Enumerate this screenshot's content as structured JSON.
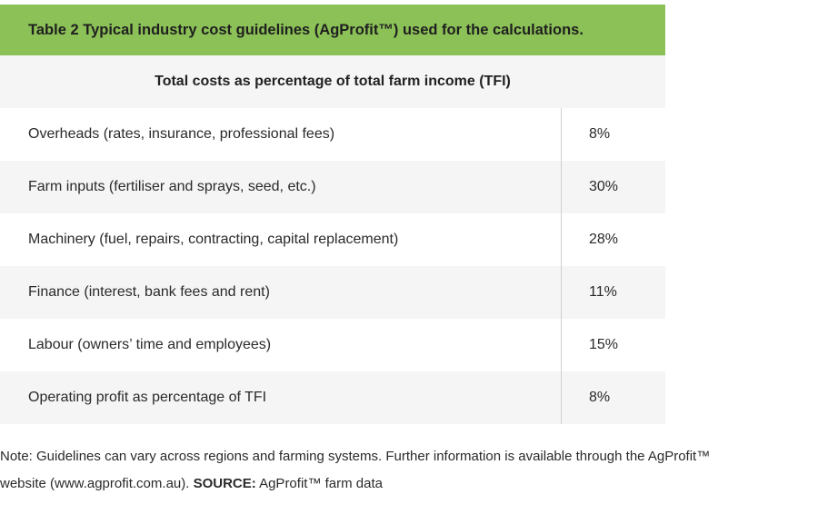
{
  "table": {
    "caption": "Table 2 Typical industry cost guidelines (AgProfit™) used for the calculations.",
    "header": "Total costs as percentage of total farm income (TFI)",
    "rows": [
      {
        "label": "Overheads (rates, insurance, professional fees)",
        "value": "8%"
      },
      {
        "label": "Farm inputs (fertiliser and sprays, seed, etc.)",
        "value": "30%"
      },
      {
        "label": "Machinery (fuel, repairs, contracting, capital replacement)",
        "value": "28%"
      },
      {
        "label": "Finance (interest, bank fees and rent)",
        "value": "11%"
      },
      {
        "label": "Labour (owners’ time and employees)",
        "value": "15%"
      },
      {
        "label": "Operating profit as percentage of TFI",
        "value": "8%"
      }
    ],
    "colors": {
      "caption_bg": "#8cc157",
      "alt_row_bg": "#f5f5f5"
    }
  },
  "note": {
    "text_line1": "Note: Guidelines can vary across regions and farming systems. Further information is available through the AgProfit™",
    "text_line2_prefix": "website (www.agprofit.com.au). ",
    "source_label": "SOURCE:",
    "source_text": " AgProfit™ farm data"
  }
}
